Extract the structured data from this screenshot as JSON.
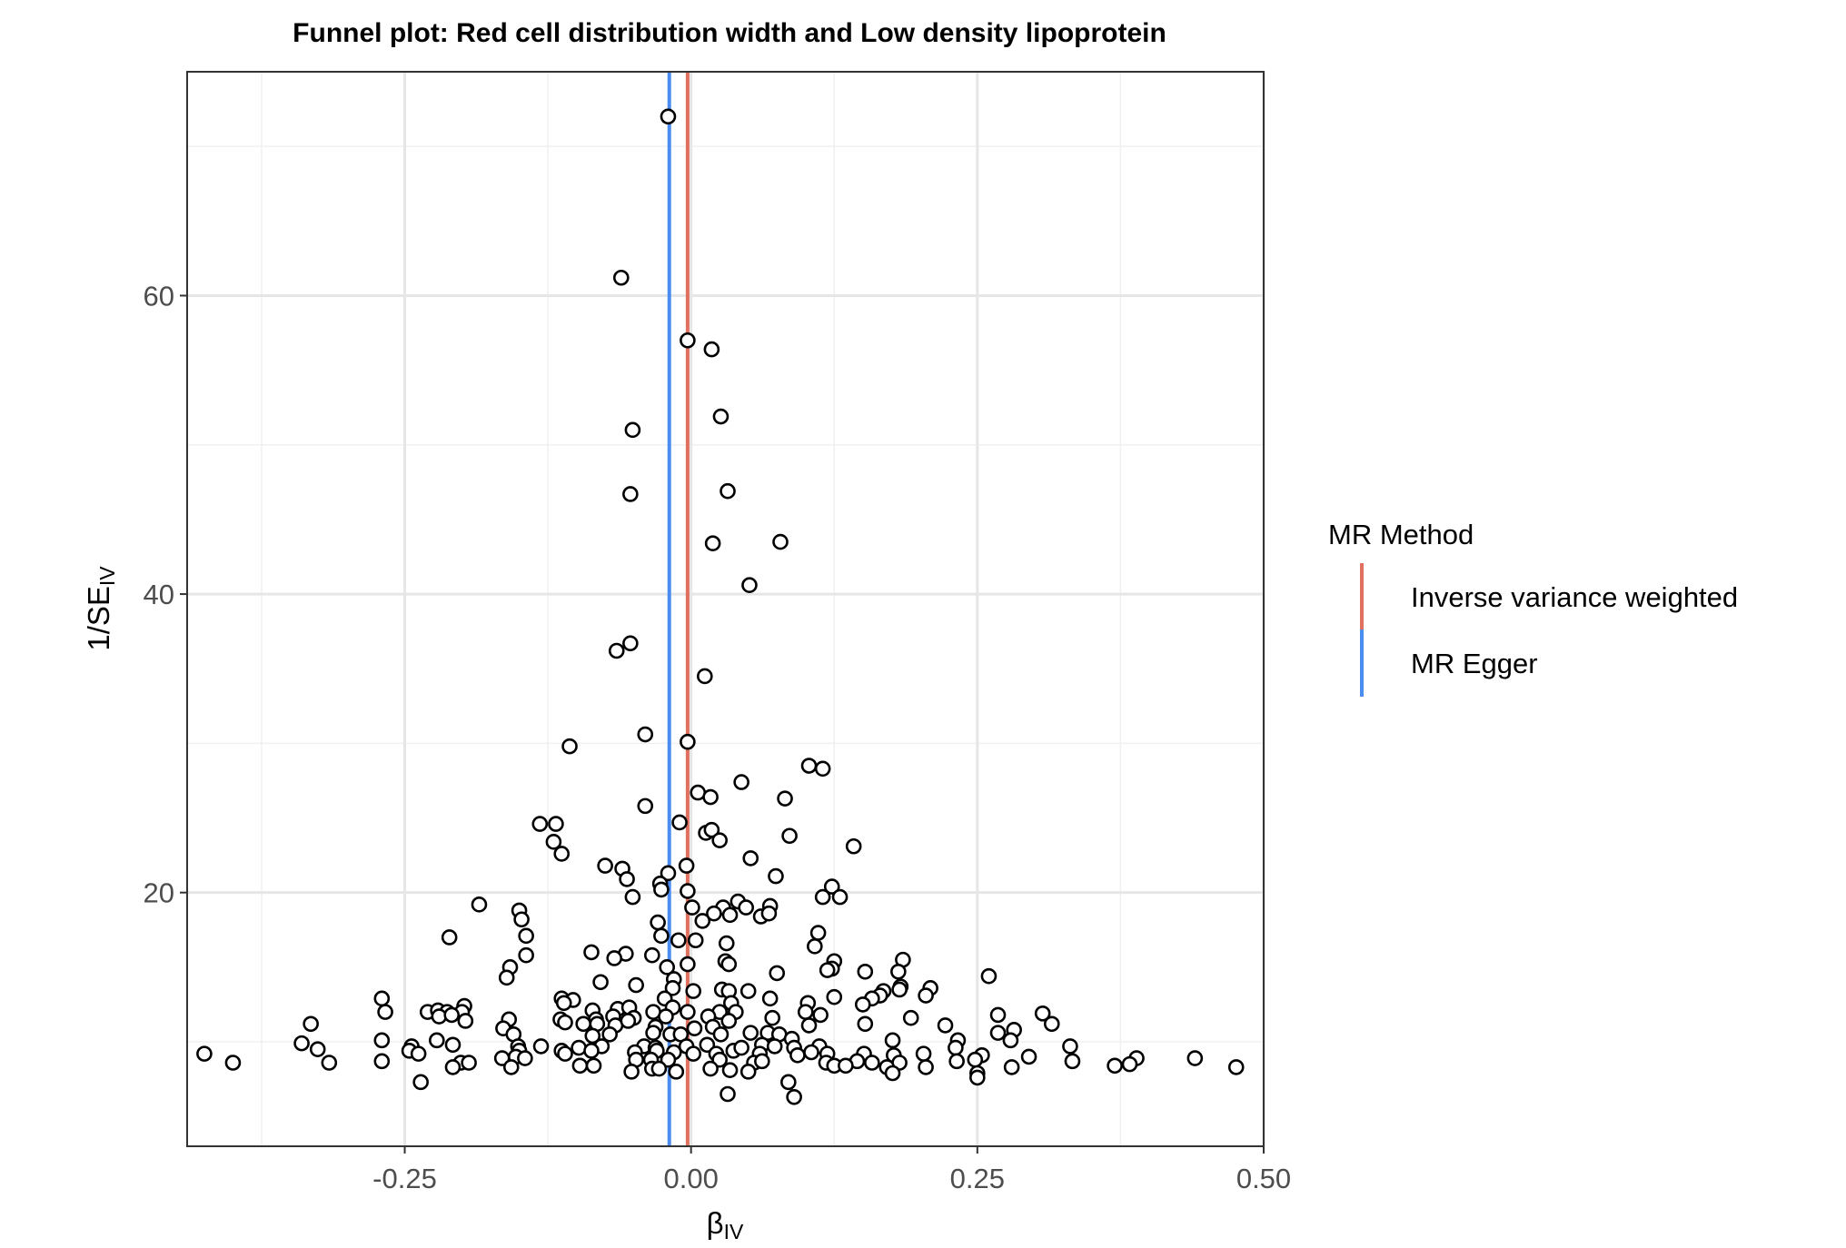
{
  "chart_data": {
    "type": "scatter",
    "title": "Funnel plot: Red cell distribution width and Low density lipoprotein",
    "xlabel": {
      "main": "β",
      "sub": "IV"
    },
    "ylabel": {
      "main": "1/SE",
      "sub": "IV"
    },
    "xlim": [
      -0.44,
      0.5
    ],
    "ylim": [
      3,
      75
    ],
    "x_ticks": [
      -0.25,
      0.0,
      0.25,
      0.5
    ],
    "x_tick_labels": [
      "-0.25",
      "0.00",
      "0.25",
      "0.50"
    ],
    "y_ticks": [
      20,
      40,
      60
    ],
    "y_tick_labels": [
      "20",
      "40",
      "60"
    ],
    "grid": true,
    "legend": {
      "title": "MR Method",
      "position": "right",
      "entries": [
        {
          "name": "Inverse variance weighted",
          "color": "#E0705F",
          "x": -0.003
        },
        {
          "name": "MR Egger",
          "color": "#4A8CF0",
          "x": -0.019
        }
      ]
    },
    "points": [
      [
        -0.02,
        72.0
      ],
      [
        -0.061,
        61.2
      ],
      [
        -0.003,
        57.0
      ],
      [
        0.018,
        56.4
      ],
      [
        0.026,
        51.9
      ],
      [
        -0.051,
        51.0
      ],
      [
        -0.053,
        46.7
      ],
      [
        0.032,
        46.9
      ],
      [
        0.019,
        43.4
      ],
      [
        0.078,
        43.5
      ],
      [
        0.051,
        40.6
      ],
      [
        -0.065,
        36.2
      ],
      [
        -0.053,
        36.7
      ],
      [
        0.012,
        34.5
      ],
      [
        -0.106,
        29.8
      ],
      [
        -0.04,
        30.6
      ],
      [
        -0.003,
        30.1
      ],
      [
        0.103,
        28.5
      ],
      [
        0.115,
        28.3
      ],
      [
        0.044,
        27.4
      ],
      [
        0.006,
        26.7
      ],
      [
        0.017,
        26.4
      ],
      [
        0.082,
        26.3
      ],
      [
        -0.04,
        25.8
      ],
      [
        -0.132,
        24.6
      ],
      [
        -0.118,
        24.6
      ],
      [
        -0.01,
        24.7
      ],
      [
        0.013,
        24.0
      ],
      [
        0.018,
        24.2
      ],
      [
        0.025,
        23.5
      ],
      [
        -0.12,
        23.4
      ],
      [
        0.086,
        23.8
      ],
      [
        0.142,
        23.1
      ],
      [
        -0.113,
        22.6
      ],
      [
        0.052,
        22.3
      ],
      [
        -0.075,
        21.8
      ],
      [
        -0.06,
        21.6
      ],
      [
        -0.004,
        21.8
      ],
      [
        -0.02,
        21.3
      ],
      [
        0.074,
        21.1
      ],
      [
        -0.056,
        20.9
      ],
      [
        -0.027,
        20.6
      ],
      [
        -0.026,
        20.2
      ],
      [
        0.123,
        20.4
      ],
      [
        -0.003,
        20.1
      ],
      [
        -0.051,
        19.7
      ],
      [
        0.115,
        19.7
      ],
      [
        0.13,
        19.7
      ],
      [
        0.041,
        19.4
      ],
      [
        -0.185,
        19.2
      ],
      [
        0.001,
        19.0
      ],
      [
        0.028,
        19.0
      ],
      [
        0.048,
        19.0
      ],
      [
        0.069,
        19.1
      ],
      [
        -0.15,
        18.8
      ],
      [
        0.02,
        18.6
      ],
      [
        0.034,
        18.5
      ],
      [
        0.061,
        18.4
      ],
      [
        0.068,
        18.6
      ],
      [
        -0.148,
        18.2
      ],
      [
        -0.029,
        18.0
      ],
      [
        0.01,
        18.1
      ],
      [
        -0.211,
        17.0
      ],
      [
        -0.144,
        17.1
      ],
      [
        -0.026,
        17.1
      ],
      [
        0.111,
        17.3
      ],
      [
        -0.011,
        16.8
      ],
      [
        0.004,
        16.8
      ],
      [
        0.031,
        16.6
      ],
      [
        0.108,
        16.4
      ],
      [
        -0.087,
        16.0
      ],
      [
        -0.057,
        15.9
      ],
      [
        -0.067,
        15.6
      ],
      [
        -0.144,
        15.8
      ],
      [
        -0.034,
        15.8
      ],
      [
        0.185,
        15.5
      ],
      [
        -0.158,
        15.0
      ],
      [
        -0.021,
        15.0
      ],
      [
        -0.003,
        15.2
      ],
      [
        0.03,
        15.4
      ],
      [
        0.033,
        15.2
      ],
      [
        0.125,
        15.4
      ],
      [
        0.123,
        14.9
      ],
      [
        0.119,
        14.8
      ],
      [
        0.181,
        14.7
      ],
      [
        0.152,
        14.7
      ],
      [
        0.075,
        14.6
      ],
      [
        0.26,
        14.4
      ],
      [
        -0.161,
        14.3
      ],
      [
        -0.015,
        14.2
      ],
      [
        -0.079,
        14.0
      ],
      [
        -0.048,
        13.8
      ],
      [
        -0.016,
        13.6
      ],
      [
        0.183,
        13.7
      ],
      [
        0.002,
        13.4
      ],
      [
        0.027,
        13.5
      ],
      [
        0.033,
        13.4
      ],
      [
        0.05,
        13.4
      ],
      [
        0.168,
        13.4
      ],
      [
        0.182,
        13.5
      ],
      [
        0.209,
        13.6
      ],
      [
        0.165,
        13.1
      ],
      [
        0.205,
        13.1
      ],
      [
        -0.27,
        12.9
      ],
      [
        -0.113,
        12.9
      ],
      [
        -0.103,
        12.8
      ],
      [
        -0.023,
        12.9
      ],
      [
        0.069,
        12.9
      ],
      [
        0.125,
        13.0
      ],
      [
        0.158,
        12.9
      ],
      [
        -0.111,
        12.6
      ],
      [
        -0.198,
        12.4
      ],
      [
        -0.016,
        12.3
      ],
      [
        0.035,
        12.6
      ],
      [
        0.102,
        12.6
      ],
      [
        0.15,
        12.5
      ],
      [
        -0.267,
        12.0
      ],
      [
        -0.23,
        12.0
      ],
      [
        -0.221,
        12.1
      ],
      [
        -0.213,
        12.0
      ],
      [
        -0.2,
        12.0
      ],
      [
        -0.086,
        12.1
      ],
      [
        -0.064,
        12.2
      ],
      [
        -0.054,
        12.3
      ],
      [
        -0.033,
        12.0
      ],
      [
        -0.003,
        12.0
      ],
      [
        0.025,
        12.0
      ],
      [
        0.039,
        12.0
      ],
      [
        0.1,
        12.0
      ],
      [
        0.113,
        11.8
      ],
      [
        0.307,
        11.9
      ],
      [
        -0.22,
        11.7
      ],
      [
        -0.209,
        11.8
      ],
      [
        -0.159,
        11.5
      ],
      [
        -0.114,
        11.5
      ],
      [
        -0.083,
        11.5
      ],
      [
        -0.068,
        11.7
      ],
      [
        -0.05,
        11.6
      ],
      [
        -0.022,
        11.7
      ],
      [
        0.015,
        11.7
      ],
      [
        0.033,
        11.4
      ],
      [
        0.071,
        11.6
      ],
      [
        0.192,
        11.6
      ],
      [
        0.268,
        11.8
      ],
      [
        0.315,
        11.2
      ],
      [
        -0.332,
        11.2
      ],
      [
        -0.197,
        11.4
      ],
      [
        -0.164,
        10.9
      ],
      [
        -0.11,
        11.3
      ],
      [
        -0.094,
        11.2
      ],
      [
        -0.082,
        11.2
      ],
      [
        -0.066,
        11.1
      ],
      [
        -0.055,
        11.4
      ],
      [
        -0.031,
        11.0
      ],
      [
        0.003,
        10.9
      ],
      [
        0.019,
        11.0
      ],
      [
        0.052,
        10.6
      ],
      [
        0.067,
        10.6
      ],
      [
        0.103,
        11.1
      ],
      [
        0.152,
        11.2
      ],
      [
        0.222,
        11.1
      ],
      [
        0.268,
        10.6
      ],
      [
        0.282,
        10.8
      ],
      [
        -0.155,
        10.5
      ],
      [
        -0.086,
        10.4
      ],
      [
        -0.071,
        10.5
      ],
      [
        -0.033,
        10.6
      ],
      [
        -0.018,
        10.5
      ],
      [
        -0.009,
        10.5
      ],
      [
        0.026,
        10.5
      ],
      [
        0.077,
        10.5
      ],
      [
        0.088,
        10.2
      ],
      [
        0.176,
        10.1
      ],
      [
        0.233,
        10.1
      ],
      [
        0.279,
        10.1
      ],
      [
        -0.34,
        9.9
      ],
      [
        -0.27,
        10.1
      ],
      [
        -0.222,
        10.1
      ],
      [
        -0.244,
        9.7
      ],
      [
        -0.208,
        9.8
      ],
      [
        -0.151,
        9.7
      ],
      [
        -0.131,
        9.7
      ],
      [
        -0.098,
        9.6
      ],
      [
        -0.078,
        9.7
      ],
      [
        -0.041,
        9.7
      ],
      [
        -0.031,
        9.6
      ],
      [
        -0.004,
        9.7
      ],
      [
        0.014,
        9.8
      ],
      [
        0.037,
        9.4
      ],
      [
        0.044,
        9.6
      ],
      [
        0.062,
        9.8
      ],
      [
        0.073,
        9.7
      ],
      [
        0.09,
        9.6
      ],
      [
        0.112,
        9.7
      ],
      [
        0.231,
        9.6
      ],
      [
        0.331,
        9.7
      ],
      [
        -0.425,
        9.2
      ],
      [
        -0.326,
        9.5
      ],
      [
        -0.246,
        9.4
      ],
      [
        -0.238,
        9.2
      ],
      [
        -0.15,
        9.4
      ],
      [
        -0.113,
        9.4
      ],
      [
        -0.11,
        9.2
      ],
      [
        -0.087,
        9.4
      ],
      [
        -0.049,
        9.3
      ],
      [
        -0.03,
        9.4
      ],
      [
        -0.015,
        9.3
      ],
      [
        0.002,
        9.2
      ],
      [
        0.022,
        9.2
      ],
      [
        0.06,
        9.2
      ],
      [
        0.093,
        9.1
      ],
      [
        0.105,
        9.3
      ],
      [
        0.119,
        9.2
      ],
      [
        0.151,
        9.2
      ],
      [
        0.177,
        9.1
      ],
      [
        0.203,
        9.2
      ],
      [
        0.254,
        9.1
      ],
      [
        0.295,
        9.0
      ],
      [
        0.389,
        8.9
      ],
      [
        0.44,
        8.9
      ],
      [
        -0.4,
        8.6
      ],
      [
        -0.316,
        8.6
      ],
      [
        -0.27,
        8.7
      ],
      [
        -0.201,
        8.6
      ],
      [
        -0.194,
        8.6
      ],
      [
        -0.165,
        8.9
      ],
      [
        -0.153,
        9.0
      ],
      [
        -0.145,
        8.9
      ],
      [
        -0.048,
        8.8
      ],
      [
        -0.035,
        8.8
      ],
      [
        -0.02,
        8.8
      ],
      [
        0.025,
        8.8
      ],
      [
        0.055,
        8.6
      ],
      [
        0.062,
        8.7
      ],
      [
        0.118,
        8.6
      ],
      [
        0.145,
        8.7
      ],
      [
        0.158,
        8.6
      ],
      [
        0.182,
        8.6
      ],
      [
        0.232,
        8.7
      ],
      [
        0.248,
        8.8
      ],
      [
        0.333,
        8.7
      ],
      [
        0.383,
        8.5
      ],
      [
        -0.208,
        8.3
      ],
      [
        -0.157,
        8.3
      ],
      [
        -0.097,
        8.4
      ],
      [
        -0.085,
        8.4
      ],
      [
        -0.034,
        8.2
      ],
      [
        -0.028,
        8.2
      ],
      [
        0.017,
        8.2
      ],
      [
        0.034,
        8.1
      ],
      [
        0.05,
        8.0
      ],
      [
        0.125,
        8.4
      ],
      [
        0.135,
        8.4
      ],
      [
        0.171,
        8.3
      ],
      [
        0.205,
        8.3
      ],
      [
        0.28,
        8.3
      ],
      [
        0.37,
        8.4
      ],
      [
        0.476,
        8.3
      ],
      [
        -0.052,
        8.0
      ],
      [
        -0.013,
        8.0
      ],
      [
        0.176,
        7.9
      ],
      [
        0.25,
        7.9
      ],
      [
        0.25,
        7.6
      ],
      [
        -0.236,
        7.3
      ],
      [
        0.085,
        7.3
      ],
      [
        0.032,
        6.5
      ],
      [
        0.09,
        6.3
      ]
    ]
  }
}
